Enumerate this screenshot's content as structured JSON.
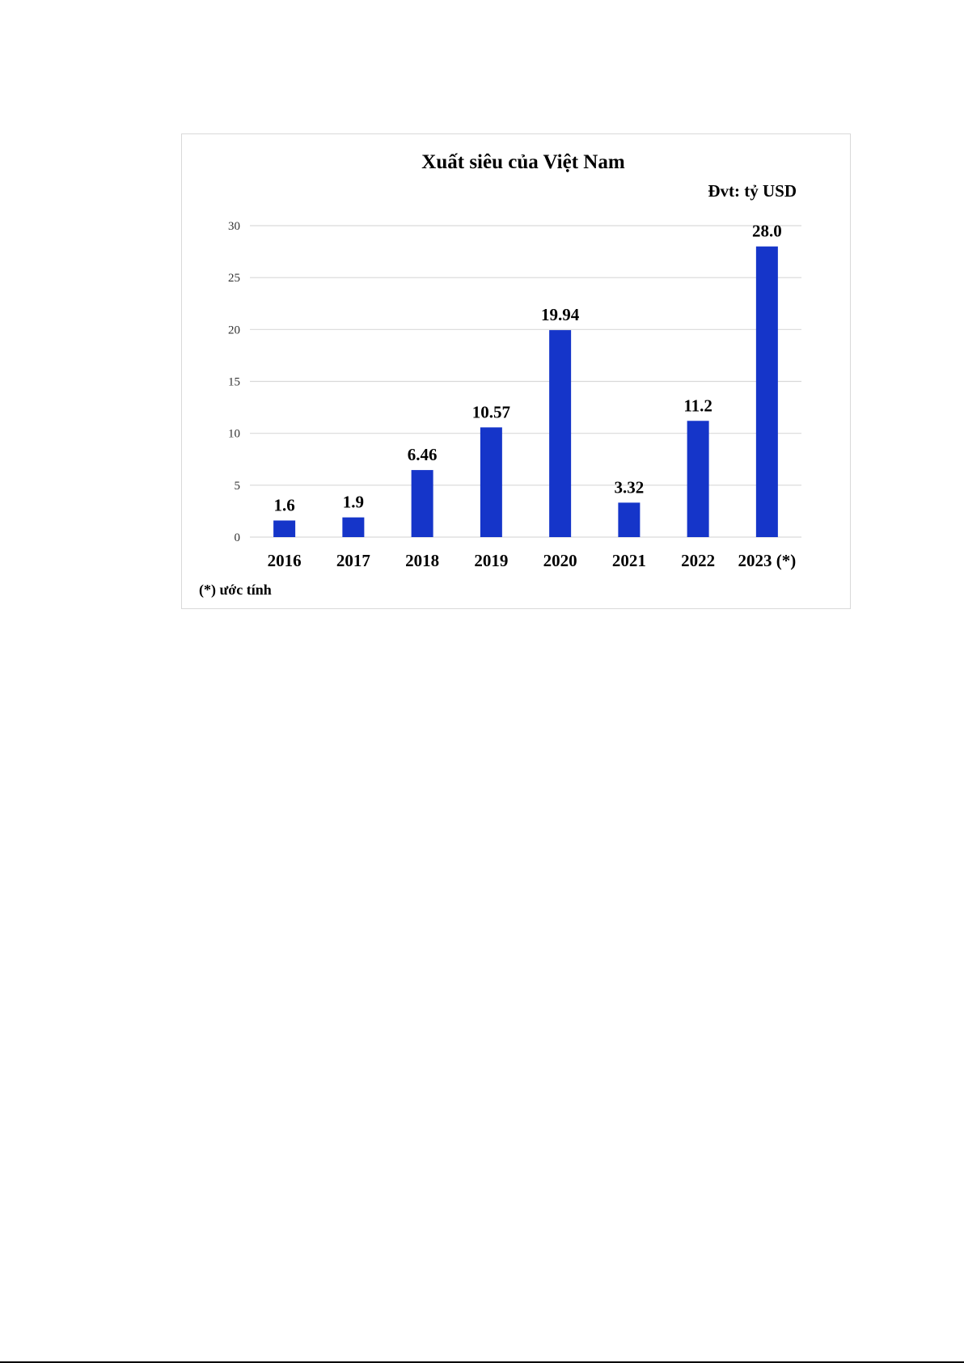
{
  "chart_data": {
    "type": "bar",
    "title": "Xuất siêu của Việt Nam",
    "unit_label": "Đvt: tỷ USD",
    "footnote": "(*) ước tính",
    "categories": [
      "2016",
      "2017",
      "2018",
      "2019",
      "2020",
      "2021",
      "2022",
      "2023 (*)"
    ],
    "values": [
      1.6,
      1.9,
      6.46,
      10.57,
      19.94,
      3.32,
      11.2,
      28.0
    ],
    "data_labels": [
      "1.6",
      "1.9",
      "6.46",
      "10.57",
      "19.94",
      "3.32",
      "11.2",
      "28.0"
    ],
    "yticks": [
      "0",
      "5",
      "10",
      "15",
      "20",
      "25",
      "30"
    ],
    "ylim": [
      0,
      30
    ],
    "grid": true,
    "legend": "none",
    "bar_color": "#1535c9",
    "grid_color": "#d9d9d9"
  }
}
